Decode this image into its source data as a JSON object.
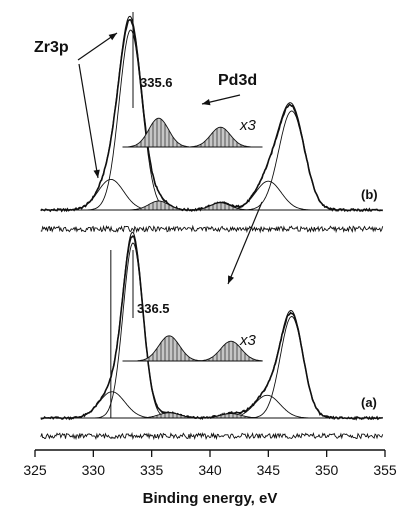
{
  "chart_data": {
    "type": "line",
    "xlabel": "Binding energy, eV",
    "xlim": [
      325,
      355
    ],
    "x_ticks": [
      325,
      330,
      335,
      340,
      345,
      350,
      355
    ],
    "grid": false,
    "colors": {
      "line": "#111111",
      "hatch_fill": "#bdbdbd"
    },
    "annotations": {
      "zr3p": "Zr3p",
      "pd3d": "Pd3d",
      "peak_b": "335.6",
      "peak_a": "336.5",
      "mult_b": "x3",
      "mult_a": "x3"
    },
    "panels": [
      {
        "label": "(b)",
        "main_peaks": [
          {
            "center": 333.2,
            "fwhm": 2.3,
            "height": 1.0
          },
          {
            "center": 347.0,
            "fwhm": 2.6,
            "height": 0.55
          }
        ],
        "zr3p_peaks": [
          {
            "center": 331.5,
            "fwhm": 2.6,
            "height": 0.17
          },
          {
            "center": 345.0,
            "fwhm": 2.6,
            "height": 0.16
          }
        ],
        "minor_peaks": [
          {
            "center": 335.6,
            "fwhm": 2.0,
            "height": 0.05
          },
          {
            "center": 340.9,
            "fwhm": 2.0,
            "height": 0.04
          }
        ],
        "magnified_peaks": [
          {
            "center": 335.6,
            "fwhm": 2.0,
            "height": 0.16
          },
          {
            "center": 340.9,
            "fwhm": 2.0,
            "height": 0.11
          }
        ]
      },
      {
        "label": "(a)",
        "main_peaks": [
          {
            "center": 333.4,
            "fwhm": 2.0,
            "height": 1.0
          },
          {
            "center": 347.0,
            "fwhm": 2.3,
            "height": 0.58
          }
        ],
        "zr3p_peaks": [
          {
            "center": 331.6,
            "fwhm": 2.6,
            "height": 0.15
          },
          {
            "center": 344.9,
            "fwhm": 2.6,
            "height": 0.13
          }
        ],
        "minor_peaks": [
          {
            "center": 336.5,
            "fwhm": 2.1,
            "height": 0.03
          },
          {
            "center": 341.8,
            "fwhm": 2.1,
            "height": 0.025
          }
        ],
        "magnified_peaks": [
          {
            "center": 336.5,
            "fwhm": 2.1,
            "height": 0.14
          },
          {
            "center": 341.8,
            "fwhm": 2.1,
            "height": 0.11
          }
        ]
      }
    ]
  }
}
